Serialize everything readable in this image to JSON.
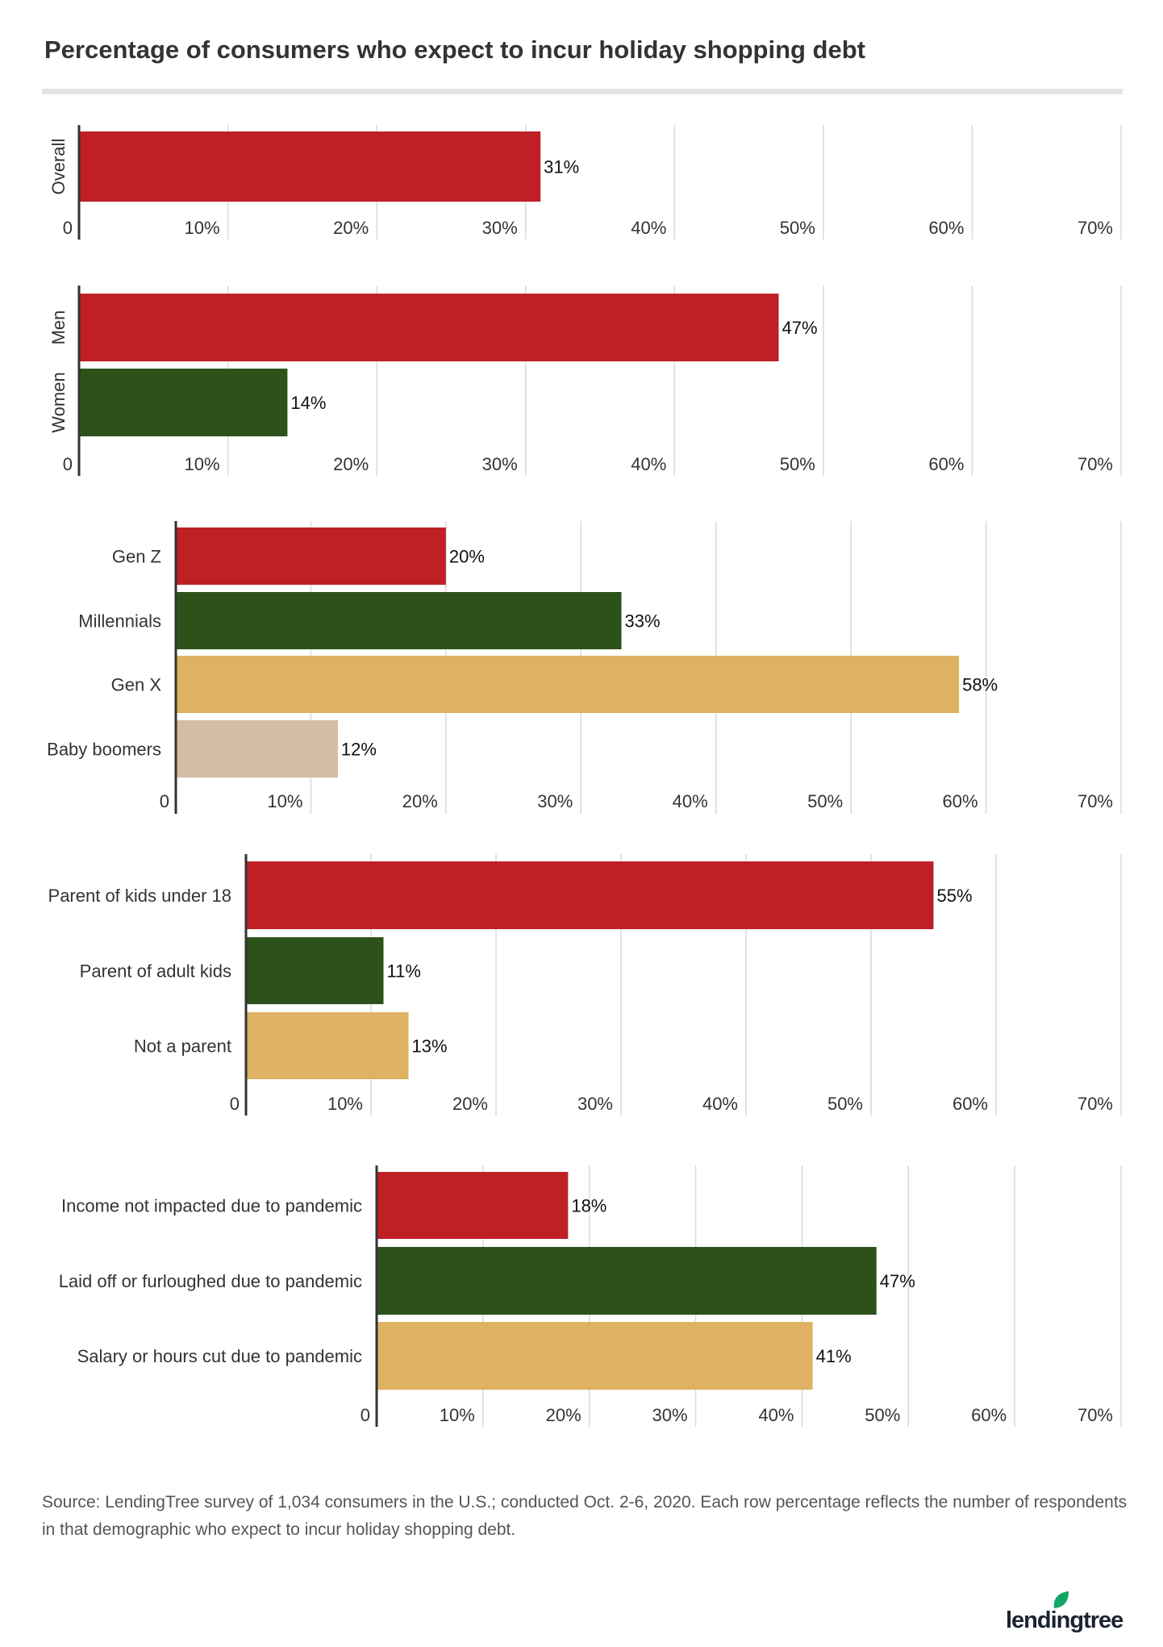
{
  "title": "Percentage of consumers who expect to incur holiday shopping debt",
  "source": "Source: LendingTree survey of 1,034 consumers in the U.S.; conducted Oct. 2-6, 2020. Each row percentage reflects the number of respondents in that demographic who expect to incur holiday shopping debt.",
  "logo_text": "lendingtree",
  "colors": {
    "red": "#BE2026",
    "green": "#2C5219",
    "gold": "#DEB163",
    "tan": "#D4BDA3",
    "grid": "#d9d9d9",
    "axis": "#333333"
  },
  "chart_data": [
    {
      "type": "bar",
      "orientation": "horizontal",
      "categories": [
        "Overall"
      ],
      "values": [
        31
      ],
      "value_labels": [
        "31%"
      ],
      "bar_colors": [
        "red"
      ],
      "xlim": [
        0,
        70
      ],
      "ticks": [
        "0",
        "10%",
        "20%",
        "30%",
        "40%",
        "50%",
        "60%",
        "70%"
      ],
      "grid": true,
      "category_labels_rotated": true
    },
    {
      "type": "bar",
      "orientation": "horizontal",
      "categories": [
        "Men",
        "Women"
      ],
      "values": [
        47,
        14
      ],
      "value_labels": [
        "47%",
        "14%"
      ],
      "bar_colors": [
        "red",
        "green"
      ],
      "xlim": [
        0,
        70
      ],
      "ticks": [
        "0",
        "10%",
        "20%",
        "30%",
        "40%",
        "50%",
        "60%",
        "70%"
      ],
      "grid": true,
      "category_labels_rotated": true
    },
    {
      "type": "bar",
      "orientation": "horizontal",
      "categories": [
        "Gen Z",
        "Millennials",
        "Gen X",
        "Baby boomers"
      ],
      "values": [
        20,
        33,
        58,
        12
      ],
      "value_labels": [
        "20%",
        "33%",
        "58%",
        "12%"
      ],
      "bar_colors": [
        "red",
        "green",
        "gold",
        "tan"
      ],
      "xlim": [
        0,
        70
      ],
      "ticks": [
        "0",
        "10%",
        "20%",
        "30%",
        "40%",
        "50%",
        "60%",
        "70%"
      ],
      "grid": true
    },
    {
      "type": "bar",
      "orientation": "horizontal",
      "categories": [
        "Parent of kids under 18",
        "Parent of adult kids",
        "Not a parent"
      ],
      "values": [
        55,
        11,
        13
      ],
      "value_labels": [
        "55%",
        "11%",
        "13%"
      ],
      "bar_colors": [
        "red",
        "green",
        "gold"
      ],
      "xlim": [
        0,
        70
      ],
      "ticks": [
        "0",
        "10%",
        "20%",
        "30%",
        "40%",
        "50%",
        "60%",
        "70%"
      ],
      "grid": true
    },
    {
      "type": "bar",
      "orientation": "horizontal",
      "categories": [
        "Income not impacted due to pandemic",
        "Laid off or furloughed due to pandemic",
        "Salary or hours cut due to pandemic"
      ],
      "values": [
        18,
        47,
        41
      ],
      "value_labels": [
        "18%",
        "47%",
        "41%"
      ],
      "bar_colors": [
        "red",
        "green",
        "gold"
      ],
      "xlim": [
        0,
        70
      ],
      "ticks": [
        "0",
        "10%",
        "20%",
        "30%",
        "40%",
        "50%",
        "60%",
        "70%"
      ],
      "grid": true
    }
  ]
}
